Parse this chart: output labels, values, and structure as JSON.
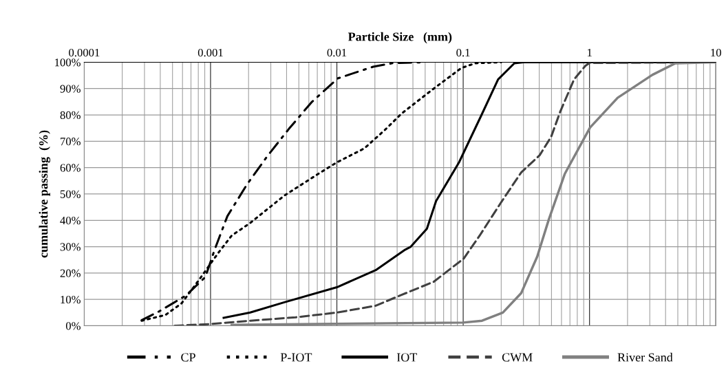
{
  "chart_data": {
    "type": "line",
    "xlabel": "Particle Size   (mm)",
    "ylabel": "cumulative passing  (%)",
    "log": "x",
    "grid": true,
    "legend": "bottom",
    "xlim": [
      0.0001,
      10
    ],
    "xticks": [
      0.0001,
      0.001,
      0.01,
      0.1,
      1,
      10
    ],
    "ylim": [
      0,
      100
    ],
    "yticks": [
      {
        "value": 0,
        "label": "0%"
      },
      {
        "value": 10,
        "label": "10%"
      },
      {
        "value": 20,
        "label": "20%"
      },
      {
        "value": 30,
        "label": "30%"
      },
      {
        "value": 40,
        "label": "40%"
      },
      {
        "value": 50,
        "label": "50%"
      },
      {
        "value": 60,
        "label": "60%"
      },
      {
        "value": 70,
        "label": "70%"
      },
      {
        "value": 80,
        "label": "80%"
      },
      {
        "value": 90,
        "label": "90%"
      },
      {
        "value": 100,
        "label": "100%"
      }
    ],
    "series": [
      {
        "name": "CP",
        "color": "#000000",
        "line_style": "dashdot",
        "x": [
          0.000285,
          0.00039,
          0.00064,
          0.00091,
          0.00108,
          0.00136,
          0.00193,
          0.00281,
          0.00417,
          0.0063,
          0.0102,
          0.0194,
          0.028,
          0.05
        ],
        "values": [
          2.1,
          5.4,
          11.5,
          18.5,
          29,
          41.6,
          53.4,
          64.3,
          74.7,
          84.8,
          93.9,
          98.3,
          99.7,
          100
        ]
      },
      {
        "name": "P-IOT",
        "color": "#000000",
        "line_style": "dotted",
        "x": [
          0.000285,
          0.00044,
          0.00059,
          0.000805,
          0.00115,
          0.00147,
          0.00206,
          0.00384,
          0.00716,
          0.01,
          0.0165,
          0.024,
          0.0325,
          0.0585,
          0.0967,
          0.124,
          0.2
        ],
        "values": [
          1.9,
          4.1,
          8.5,
          17.2,
          27.6,
          34.2,
          39,
          49.4,
          57.7,
          62,
          67.3,
          74.3,
          80.5,
          90,
          97.8,
          99.6,
          100
        ]
      },
      {
        "name": "IOT",
        "color": "#000000",
        "line_style": "solid",
        "x": [
          0.00127,
          0.00206,
          0.00384,
          0.01,
          0.0203,
          0.0348,
          0.0385,
          0.0516,
          0.061,
          0.0927,
          0.141,
          0.189,
          0.254,
          0.3,
          10
        ],
        "values": [
          3,
          5,
          8.9,
          14.6,
          21.1,
          28.9,
          30,
          36.8,
          47.3,
          62,
          80.4,
          93.5,
          99.6,
          100,
          100
        ]
      },
      {
        "name": "CWM",
        "color": "#404040",
        "line_style": "dashed",
        "x": [
          0.00052,
          0.00097,
          0.00206,
          0.00472,
          0.01,
          0.0203,
          0.0325,
          0.0585,
          0.101,
          0.135,
          0.197,
          0.288,
          0.403,
          0.497,
          0.587,
          0.755,
          0.93,
          1.0,
          10
        ],
        "values": [
          0,
          0.6,
          1.9,
          3.2,
          5,
          7.6,
          11.7,
          16.7,
          25.5,
          34.2,
          46.4,
          58.2,
          64.7,
          71.7,
          81.3,
          93.5,
          98.7,
          99.7,
          100
        ]
      },
      {
        "name": "River Sand",
        "color": "#808080",
        "line_style": "solid",
        "x": [
          0.00147,
          0.1,
          0.141,
          0.206,
          0.288,
          0.386,
          0.476,
          0.638,
          1.01,
          1.67,
          3.14,
          4.78,
          10
        ],
        "values": [
          0.3,
          1.2,
          1.9,
          5,
          12.4,
          26.3,
          40.3,
          57.7,
          75.2,
          86.5,
          95.2,
          99.6,
          100
        ]
      }
    ]
  }
}
